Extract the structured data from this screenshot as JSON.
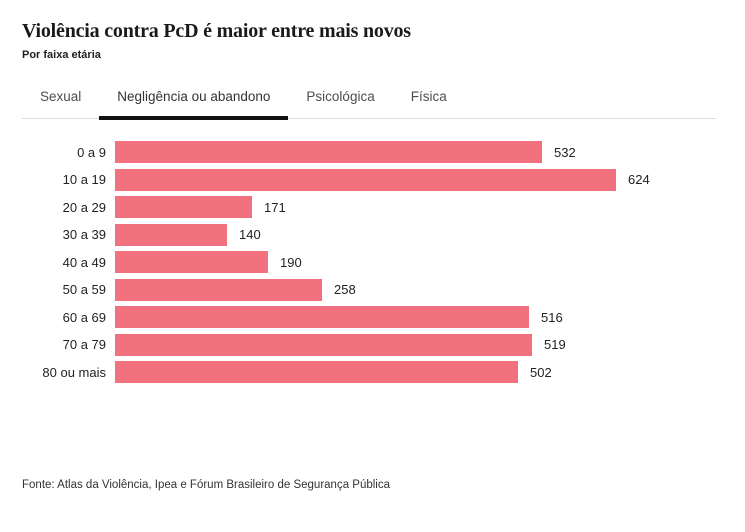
{
  "header": {
    "title": "Violência contra PcD é maior entre mais novos",
    "subtitle": "Por faixa etária"
  },
  "tabs": [
    {
      "label": "Sexual",
      "active": false
    },
    {
      "label": "Negligência ou abandono",
      "active": true
    },
    {
      "label": "Psicológica",
      "active": false
    },
    {
      "label": "Física",
      "active": false
    }
  ],
  "chart_data": {
    "type": "bar",
    "orientation": "horizontal",
    "title": "Violência contra PcD é maior entre mais novos",
    "subtitle": "Por faixa etária",
    "series_name": "Negligência ou abandono",
    "categories": [
      "0 a 9",
      "10 a 19",
      "20 a 29",
      "30 a 39",
      "40 a 49",
      "50 a 59",
      "60 a 69",
      "70 a 79",
      "80 ou mais"
    ],
    "values": [
      532,
      624,
      171,
      140,
      190,
      258,
      516,
      519,
      502
    ],
    "xlabel": "",
    "ylabel": "",
    "xlim": [
      0,
      624
    ],
    "grid": false,
    "legend": false,
    "data_labels": true,
    "bar_color": "#f2717f"
  },
  "colors": {
    "bar": "#f2717f",
    "active_tab_underline": "#111111",
    "tab_divider": "#dddddd"
  },
  "footer": {
    "source": "Fonte: Atlas da Violência, Ipea e Fórum Brasileiro de Segurança Pública"
  }
}
